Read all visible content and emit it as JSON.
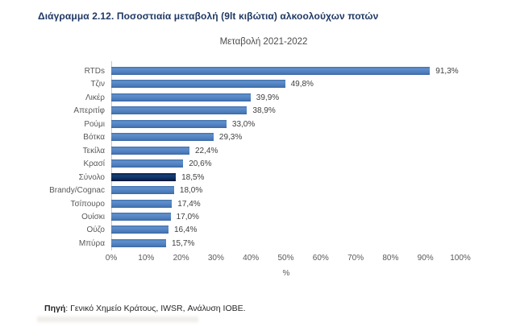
{
  "page": {
    "title": "Διάγραμμα 2.12. Ποσοστιαία μεταβολή (9lt κιβώτια) αλκοολούχων ποτών",
    "source_prefix": "Πηγή",
    "source_rest": ": Γενικό Χημείο Κράτους, IWSR, Ανάλυση ΙΟΒΕ."
  },
  "chart_data": {
    "type": "bar",
    "orientation": "horizontal",
    "title": "Μεταβολή 2021-2022",
    "categories": [
      "RTDs",
      "Τζιν",
      "Λικέρ",
      "Απεριτίφ",
      "Ρούμι",
      "Βότκα",
      "Τεκίλα",
      "Κρασί",
      "Σύνολο",
      "Brandy/Cognac",
      "Τσίπουρο",
      "Ουίσκι",
      "Ούζο",
      "Μπύρα"
    ],
    "values": [
      91.3,
      49.8,
      39.9,
      38.9,
      33.0,
      29.3,
      22.4,
      20.6,
      18.5,
      18.0,
      17.4,
      17.0,
      16.4,
      15.7
    ],
    "value_labels": [
      "91,3%",
      "49,8%",
      "39,9%",
      "38,9%",
      "33,0%",
      "29,3%",
      "22,4%",
      "20,6%",
      "18,5%",
      "18,0%",
      "17,4%",
      "17,0%",
      "16,4%",
      "15,7%"
    ],
    "highlight_category": "Σύνολο",
    "highlight_index": 8,
    "xlabel": "%",
    "xlim": [
      0,
      100
    ],
    "x_ticks": [
      "0%",
      "10%",
      "20%",
      "30%",
      "40%",
      "50%",
      "60%",
      "70%",
      "80%",
      "90%",
      "100%"
    ],
    "grid": false,
    "legend": "none",
    "colors": {
      "bar": "#4F81BD",
      "highlight_bar": "#0D2C5C",
      "title_text": "#1F3864",
      "subtitle_text": "#4D4D4D",
      "axis_text": "#595959",
      "value_text": "#404040"
    }
  }
}
